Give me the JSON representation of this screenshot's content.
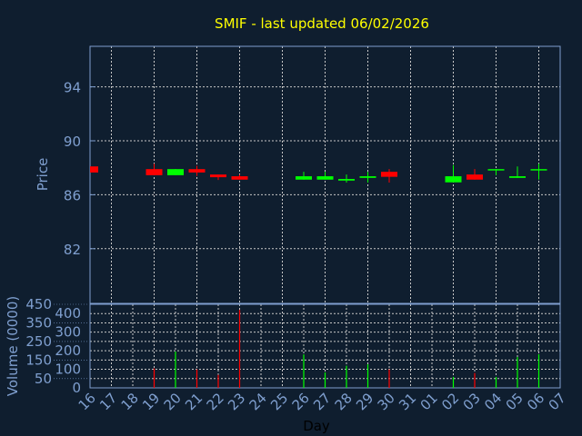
{
  "chart_data": [
    {
      "type": "candlestick",
      "title": "SMIF - last updated 06/02/2026",
      "ylabel": "Price",
      "ylim": [
        78.9,
        97
      ],
      "yticks": [
        82,
        86,
        90,
        94
      ],
      "grid": true,
      "colors": {
        "up": "#00ff00",
        "down": "#ff0000",
        "title": "#ffff00",
        "axis": "#7f9fcf"
      },
      "categories": [
        "16",
        "17",
        "18",
        "19",
        "20",
        "21",
        "22",
        "23",
        "24",
        "25",
        "26",
        "27",
        "28",
        "29",
        "30",
        "31",
        "01",
        "02",
        "03",
        "04",
        "05",
        "06",
        "07"
      ],
      "candles": [
        {
          "day": "16",
          "open": 88.1,
          "high": 88.1,
          "low": 87.65,
          "close": 87.65
        },
        {
          "day": "19",
          "open": 87.9,
          "high": 88.3,
          "low": 87.45,
          "close": 87.45
        },
        {
          "day": "20",
          "open": 87.45,
          "high": 87.9,
          "low": 87.45,
          "close": 87.9
        },
        {
          "day": "21",
          "open": 87.9,
          "high": 88.15,
          "low": 87.4,
          "close": 87.65
        },
        {
          "day": "22",
          "open": 87.5,
          "high": 87.5,
          "low": 87.1,
          "close": 87.3
        },
        {
          "day": "23",
          "open": 87.37,
          "high": 87.5,
          "low": 87.12,
          "close": 87.12
        },
        {
          "day": "26",
          "open": 87.12,
          "high": 87.7,
          "low": 87.12,
          "close": 87.37
        },
        {
          "day": "27",
          "open": 87.12,
          "high": 87.7,
          "low": 87.12,
          "close": 87.37
        },
        {
          "day": "28",
          "open": 87.05,
          "high": 87.5,
          "low": 86.9,
          "close": 87.17
        },
        {
          "day": "29",
          "open": 87.25,
          "high": 87.7,
          "low": 86.9,
          "close": 87.37
        },
        {
          "day": "30",
          "open": 87.7,
          "high": 87.9,
          "low": 86.9,
          "close": 87.33
        },
        {
          "day": "02",
          "open": 86.92,
          "high": 88.2,
          "low": 86.92,
          "close": 87.37
        },
        {
          "day": "03",
          "open": 87.5,
          "high": 87.9,
          "low": 87.12,
          "close": 87.12
        },
        {
          "day": "04",
          "open": 87.83,
          "high": 87.9,
          "low": 87.45,
          "close": 87.9
        },
        {
          "day": "05",
          "open": 87.25,
          "high": 88.1,
          "low": 87.25,
          "close": 87.37
        },
        {
          "day": "06",
          "open": 87.83,
          "high": 88.3,
          "low": 87.12,
          "close": 87.9
        }
      ]
    },
    {
      "type": "bar",
      "xlabel": "Day",
      "ylabel": "Volume (0000)",
      "ylim": [
        0,
        450
      ],
      "yticks": [
        0,
        50,
        100,
        150,
        200,
        250,
        300,
        350,
        400,
        450
      ],
      "grid": true,
      "bars": [
        {
          "day": "19",
          "value": 105,
          "dir": "down"
        },
        {
          "day": "20",
          "value": 195,
          "dir": "up"
        },
        {
          "day": "21",
          "value": 100,
          "dir": "down"
        },
        {
          "day": "22",
          "value": 70,
          "dir": "down"
        },
        {
          "day": "23",
          "value": 420,
          "dir": "down"
        },
        {
          "day": "26",
          "value": 180,
          "dir": "up"
        },
        {
          "day": "27",
          "value": 83,
          "dir": "up"
        },
        {
          "day": "28",
          "value": 119,
          "dir": "up"
        },
        {
          "day": "29",
          "value": 127,
          "dir": "up"
        },
        {
          "day": "30",
          "value": 100,
          "dir": "down"
        },
        {
          "day": "02",
          "value": 59,
          "dir": "up"
        },
        {
          "day": "03",
          "value": 80,
          "dir": "down"
        },
        {
          "day": "04",
          "value": 59,
          "dir": "up"
        },
        {
          "day": "05",
          "value": 166,
          "dir": "up"
        },
        {
          "day": "06",
          "value": 181,
          "dir": "up"
        }
      ]
    }
  ]
}
